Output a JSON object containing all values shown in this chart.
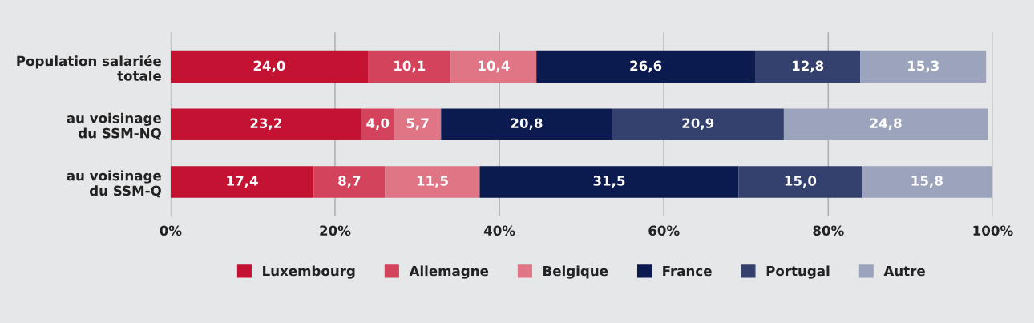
{
  "chart_data": {
    "type": "bar",
    "orientation": "horizontal",
    "stacked": true,
    "categories": [
      "Population salariée\ntotale",
      "au voisinage\ndu SSM-NQ",
      "au voisinage\ndu SSM-Q"
    ],
    "series": [
      {
        "name": "Luxembourg",
        "color": "#c41233",
        "values": [
          24.0,
          23.2,
          17.4
        ],
        "value_labels": [
          "24,0",
          "23,2",
          "17,4"
        ]
      },
      {
        "name": "Allemagne",
        "color": "#d3435b",
        "values": [
          10.1,
          4.0,
          8.7
        ],
        "value_labels": [
          "10,1",
          "4,0",
          "8,7"
        ]
      },
      {
        "name": "Belgique",
        "color": "#df7585",
        "values": [
          10.4,
          5.7,
          11.5
        ],
        "value_labels": [
          "10,4",
          "5,7",
          "11,5"
        ]
      },
      {
        "name": "France",
        "color": "#0b1a4f",
        "values": [
          26.6,
          20.8,
          31.5
        ],
        "value_labels": [
          "26,6",
          "20,8",
          "31,5"
        ]
      },
      {
        "name": "Portugal",
        "color": "#34416f",
        "values": [
          12.8,
          20.9,
          15.0
        ],
        "value_labels": [
          "12,8",
          "20,9",
          "15,0"
        ]
      },
      {
        "name": "Autre",
        "color": "#9ca3bd",
        "values": [
          15.3,
          24.8,
          15.8
        ],
        "value_labels": [
          "15,3",
          "24,8",
          "15,8"
        ]
      }
    ],
    "xlim": [
      0,
      100
    ],
    "xticks": [
      {
        "value": 0,
        "label": "0%"
      },
      {
        "value": 20,
        "label": "20%"
      },
      {
        "value": 40,
        "label": "40%"
      },
      {
        "value": 60,
        "label": "60%"
      },
      {
        "value": 80,
        "label": "80%"
      },
      {
        "value": 100,
        "label": "100%"
      }
    ],
    "grid": "x",
    "legend": "bottom"
  }
}
